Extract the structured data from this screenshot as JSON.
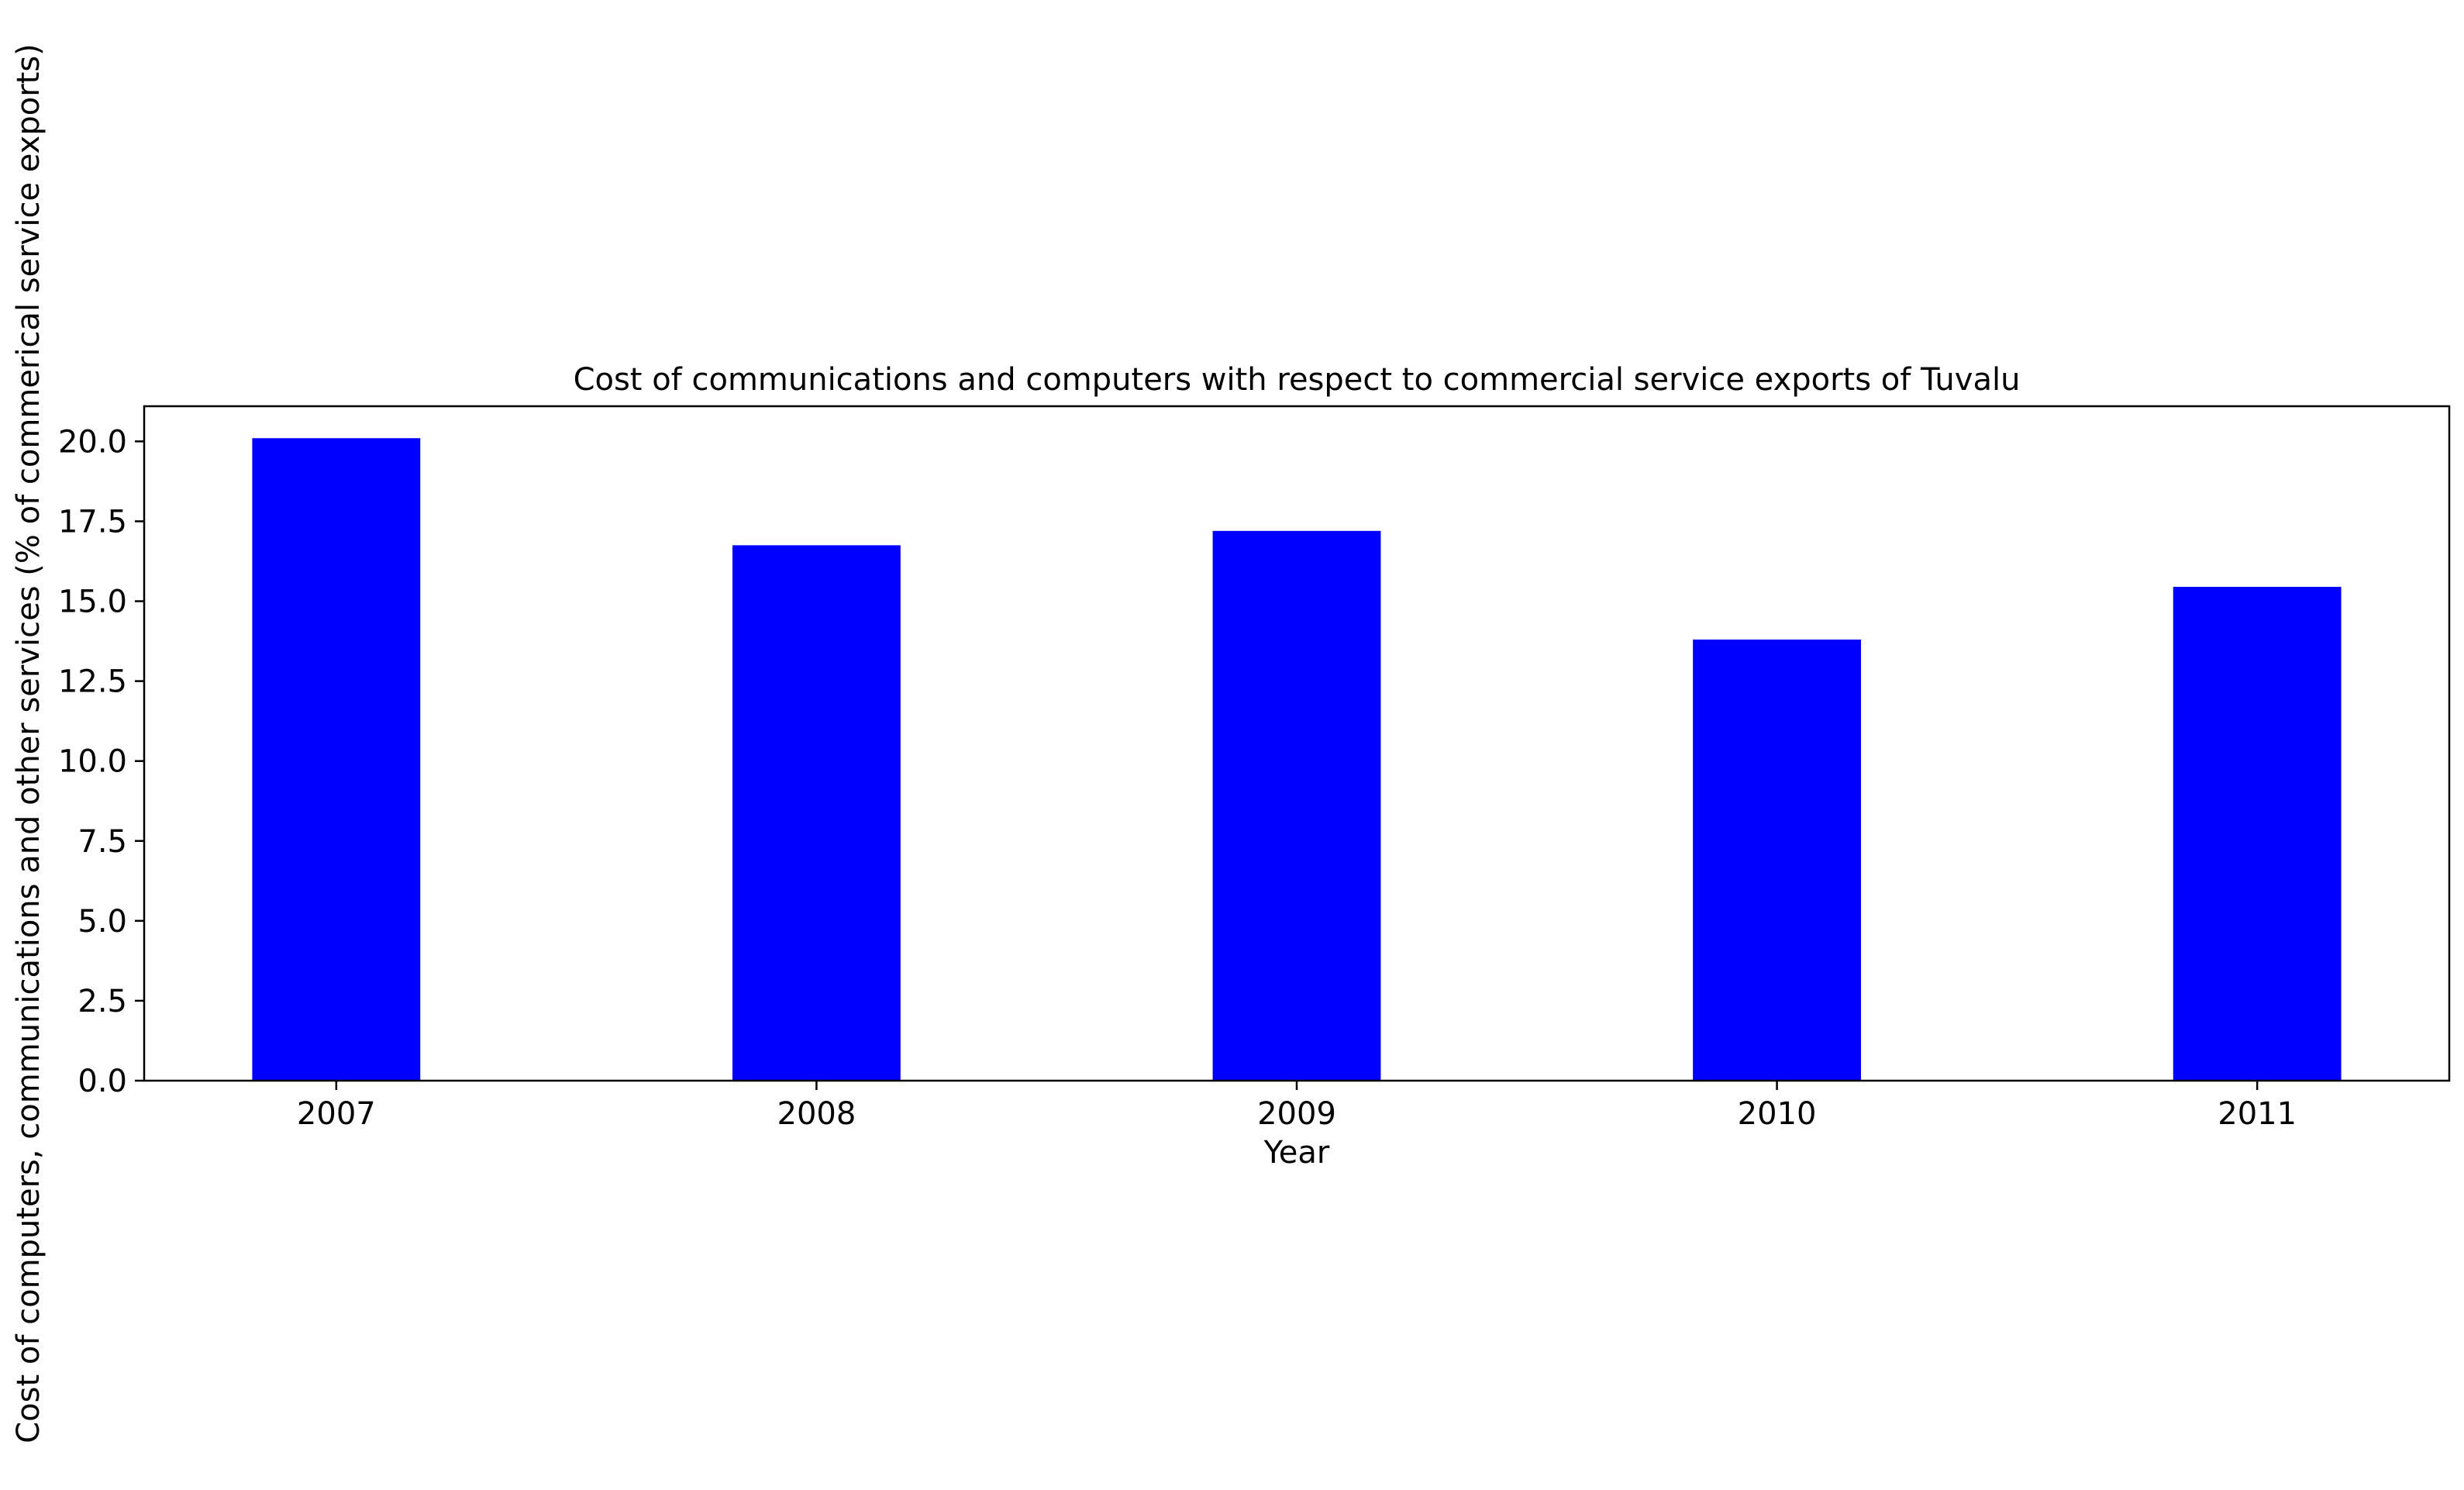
{
  "chart_data": {
    "type": "bar",
    "title": "Cost of communications and computers with respect to commercial service exports of Tuvalu",
    "xlabel": "Year",
    "ylabel": "Cost of computers, communications and other services (% of commerical service exports)",
    "categories": [
      "2007",
      "2008",
      "2009",
      "2010",
      "2011"
    ],
    "values": [
      20.1,
      16.75,
      17.2,
      13.8,
      15.45
    ],
    "ylim": [
      0,
      21.1
    ],
    "yticks": [
      0.0,
      2.5,
      5.0,
      7.5,
      10.0,
      12.5,
      15.0,
      17.5,
      20.0
    ],
    "ytick_labels": [
      "0.0",
      "2.5",
      "5.0",
      "7.5",
      "10.0",
      "12.5",
      "15.0",
      "17.5",
      "20.0"
    ],
    "bar_color": "#0000ff",
    "grid": false,
    "legend": "none"
  }
}
